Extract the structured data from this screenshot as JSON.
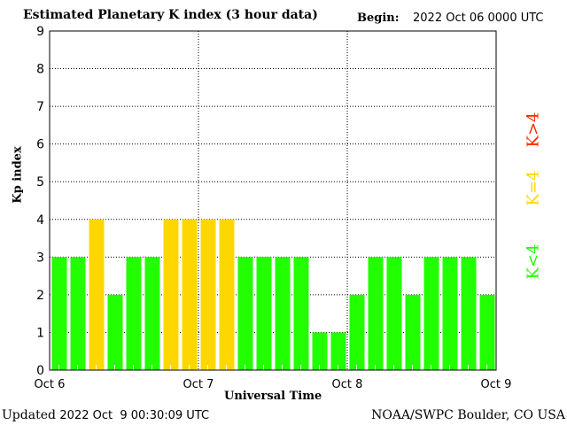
{
  "header": {
    "title": "Estimated Planetary K index (3 hour data)",
    "begin_label": "Begin:",
    "begin_value": "2022 Oct 06 0000 UTC"
  },
  "footer": {
    "updated_label": "Updated",
    "updated_value": "2022 Oct  9 00:30:09 UTC",
    "credit": "NOAA/SWPC Boulder, CO USA"
  },
  "legend": {
    "low": "K<4",
    "mid": "K=4",
    "high": "K>4"
  },
  "colors": {
    "low": "#22ff00",
    "mid": "#ffd700",
    "high": "#ff2200"
  },
  "chart_data": {
    "type": "bar",
    "title": "Estimated Planetary K index (3 hour data)",
    "xlabel": "Universal Time",
    "ylabel": "Kp index",
    "ylim": [
      0,
      9
    ],
    "yticks": [
      "0",
      "1",
      "2",
      "3",
      "4",
      "5",
      "6",
      "7",
      "8",
      "9"
    ],
    "xticks": [
      "Oct 6",
      "Oct 7",
      "Oct 8",
      "Oct 9"
    ],
    "interval_hours": 3,
    "values": [
      3,
      3,
      4,
      2,
      3,
      3,
      4,
      4,
      4,
      4,
      3,
      3,
      3,
      3,
      1,
      1,
      2,
      3,
      3,
      2,
      3,
      3,
      3,
      2
    ]
  }
}
